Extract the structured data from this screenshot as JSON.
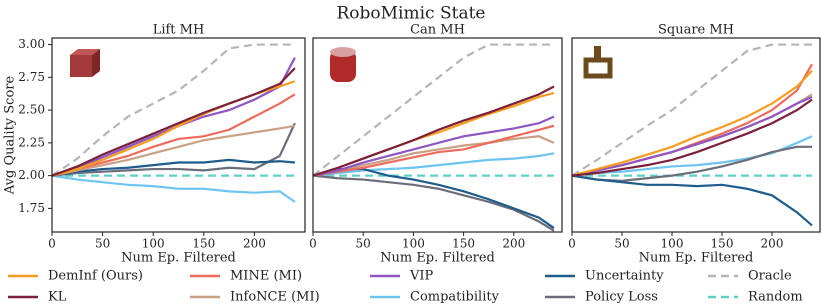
{
  "title": "RoboMimic State",
  "legend": [
    {
      "name": "DemInf (Ours)",
      "color": "#f59d1f",
      "dash": false
    },
    {
      "name": "KL",
      "color": "#7b1f3a",
      "dash": false
    },
    {
      "name": "MINE (MI)",
      "color": "#ee6a5d",
      "dash": false
    },
    {
      "name": "InfoNCE (MI)",
      "color": "#c9a082",
      "dash": false
    },
    {
      "name": "VIP",
      "color": "#8f55c4",
      "dash": false
    },
    {
      "name": "Compatibility",
      "color": "#6ec4f0",
      "dash": false
    },
    {
      "name": "Uncertainty",
      "color": "#1f5c8c",
      "dash": false
    },
    {
      "name": "Policy Loss",
      "color": "#6b6e7a",
      "dash": false
    },
    {
      "name": "Oracle",
      "color": "#b5b5b5",
      "dash": true
    },
    {
      "name": "Random",
      "color": "#5fd0c8",
      "dash": true
    }
  ],
  "chart_data": [
    {
      "type": "line",
      "title": "Lift MH",
      "xlabel": "Num Ep. Filtered",
      "ylabel": "Avg Quality Score",
      "x": [
        0,
        25,
        50,
        75,
        100,
        125,
        150,
        175,
        200,
        225,
        240
      ],
      "xlim": [
        0,
        250
      ],
      "ylim": [
        1.57,
        3.05
      ],
      "xticks": [
        0,
        50,
        100,
        150,
        200
      ],
      "yticks": [
        {
          "value": 1.75,
          "label": "1.75"
        },
        {
          "value": 2,
          "label": "2.00"
        },
        {
          "value": 2.25,
          "label": "2.25"
        },
        {
          "value": 2.5,
          "label": "2.50"
        },
        {
          "value": 2.75,
          "label": "2.75"
        },
        {
          "value": 3,
          "label": "3.00"
        }
      ],
      "series": [
        {
          "values": [
            2.0,
            2.05,
            2.12,
            2.2,
            2.28,
            2.38,
            2.47,
            2.55,
            2.62,
            2.68,
            2.72
          ]
        },
        {
          "values": [
            2.0,
            2.07,
            2.16,
            2.24,
            2.32,
            2.4,
            2.48,
            2.55,
            2.62,
            2.7,
            2.82
          ]
        },
        {
          "values": [
            2.0,
            2.05,
            2.1,
            2.15,
            2.22,
            2.28,
            2.3,
            2.35,
            2.45,
            2.55,
            2.62
          ]
        },
        {
          "values": [
            2.0,
            2.04,
            2.08,
            2.12,
            2.17,
            2.22,
            2.27,
            2.3,
            2.33,
            2.36,
            2.38
          ]
        },
        {
          "values": [
            2.0,
            2.06,
            2.14,
            2.22,
            2.3,
            2.38,
            2.45,
            2.5,
            2.58,
            2.68,
            2.9
          ]
        },
        {
          "values": [
            2.0,
            1.97,
            1.95,
            1.93,
            1.92,
            1.9,
            1.9,
            1.88,
            1.87,
            1.88,
            1.8
          ]
        },
        {
          "values": [
            2.0,
            2.03,
            2.05,
            2.06,
            2.08,
            2.1,
            2.1,
            2.12,
            2.1,
            2.11,
            2.1
          ]
        },
        {
          "values": [
            2.0,
            2.02,
            2.03,
            2.04,
            2.05,
            2.05,
            2.04,
            2.06,
            2.05,
            2.15,
            2.4
          ]
        },
        {
          "values": [
            2.0,
            2.13,
            2.3,
            2.45,
            2.55,
            2.65,
            2.8,
            2.97,
            3.0,
            3.0,
            3.0
          ]
        },
        {
          "values": [
            2.0,
            2.0,
            2.0,
            2.0,
            2.0,
            2.0,
            2.0,
            2.0,
            2.0,
            2.0,
            2.0
          ]
        }
      ]
    },
    {
      "type": "line",
      "title": "Can MH",
      "xlabel": "Num Ep. Filtered",
      "x": [
        0,
        25,
        50,
        75,
        100,
        125,
        150,
        175,
        200,
        225,
        240
      ],
      "xlim": [
        0,
        248
      ],
      "ylim": [
        1.57,
        3.05
      ],
      "xticks": [
        0,
        50,
        100,
        150,
        200
      ],
      "series": [
        {
          "values": [
            2.0,
            2.06,
            2.13,
            2.2,
            2.27,
            2.33,
            2.4,
            2.47,
            2.53,
            2.6,
            2.63
          ]
        },
        {
          "values": [
            2.0,
            2.06,
            2.13,
            2.2,
            2.27,
            2.35,
            2.42,
            2.48,
            2.55,
            2.62,
            2.68
          ]
        },
        {
          "values": [
            2.0,
            2.03,
            2.06,
            2.1,
            2.14,
            2.18,
            2.2,
            2.25,
            2.3,
            2.35,
            2.38
          ]
        },
        {
          "values": [
            2.0,
            2.04,
            2.08,
            2.12,
            2.17,
            2.2,
            2.23,
            2.25,
            2.28,
            2.3,
            2.25
          ]
        },
        {
          "values": [
            2.0,
            2.04,
            2.1,
            2.15,
            2.2,
            2.25,
            2.3,
            2.33,
            2.36,
            2.4,
            2.45
          ]
        },
        {
          "values": [
            2.0,
            2.02,
            2.04,
            2.05,
            2.06,
            2.08,
            2.1,
            2.12,
            2.13,
            2.15,
            2.17
          ]
        },
        {
          "values": [
            2.0,
            2.05,
            2.05,
            2.0,
            1.97,
            1.93,
            1.88,
            1.82,
            1.75,
            1.68,
            1.6
          ]
        },
        {
          "values": [
            2.0,
            1.98,
            1.97,
            1.95,
            1.93,
            1.9,
            1.85,
            1.8,
            1.74,
            1.65,
            1.58
          ]
        },
        {
          "values": [
            2.0,
            2.15,
            2.3,
            2.45,
            2.6,
            2.75,
            2.9,
            3.0,
            3.0,
            3.0,
            3.0
          ]
        },
        {
          "values": [
            2.0,
            2.0,
            2.0,
            2.0,
            2.0,
            2.0,
            2.0,
            2.0,
            2.0,
            2.0,
            2.0
          ]
        }
      ]
    },
    {
      "type": "line",
      "title": "Square MH",
      "xlabel": "Num Ep. Filtered",
      "x": [
        0,
        25,
        50,
        75,
        100,
        125,
        150,
        175,
        200,
        225,
        240
      ],
      "xlim": [
        0,
        248
      ],
      "ylim": [
        1.57,
        3.05
      ],
      "xticks": [
        0,
        50,
        100,
        150,
        200
      ],
      "series": [
        {
          "values": [
            2.0,
            2.05,
            2.1,
            2.16,
            2.22,
            2.3,
            2.37,
            2.45,
            2.55,
            2.68,
            2.8
          ]
        },
        {
          "values": [
            2.0,
            2.02,
            2.05,
            2.08,
            2.12,
            2.18,
            2.25,
            2.32,
            2.4,
            2.5,
            2.58
          ]
        },
        {
          "values": [
            2.0,
            2.04,
            2.08,
            2.13,
            2.18,
            2.25,
            2.32,
            2.4,
            2.5,
            2.65,
            2.85
          ]
        },
        {
          "values": [
            2.0,
            2.04,
            2.08,
            2.13,
            2.18,
            2.24,
            2.3,
            2.37,
            2.45,
            2.55,
            2.62
          ]
        },
        {
          "values": [
            2.0,
            2.04,
            2.08,
            2.13,
            2.18,
            2.24,
            2.3,
            2.37,
            2.45,
            2.55,
            2.6
          ]
        },
        {
          "values": [
            2.0,
            2.02,
            2.03,
            2.05,
            2.07,
            2.08,
            2.1,
            2.13,
            2.17,
            2.25,
            2.3
          ]
        },
        {
          "values": [
            2.0,
            1.97,
            1.95,
            1.93,
            1.93,
            1.92,
            1.93,
            1.9,
            1.85,
            1.72,
            1.62
          ]
        },
        {
          "values": [
            2.0,
            1.97,
            1.96,
            1.98,
            2.0,
            2.03,
            2.07,
            2.12,
            2.18,
            2.22,
            2.22
          ]
        },
        {
          "values": [
            2.0,
            2.12,
            2.25,
            2.38,
            2.5,
            2.65,
            2.8,
            2.95,
            3.0,
            3.0,
            3.0
          ]
        },
        {
          "values": [
            2.0,
            2.0,
            2.0,
            2.0,
            2.0,
            2.0,
            2.0,
            2.0,
            2.0,
            2.0,
            2.0
          ]
        }
      ]
    }
  ]
}
